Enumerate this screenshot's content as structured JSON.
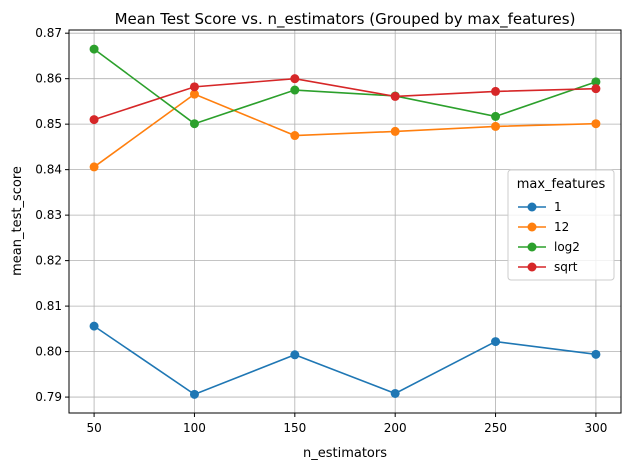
{
  "chart_data": {
    "type": "line",
    "title": "Mean Test Score vs. n_estimators (Grouped by max_features)",
    "xlabel": "n_estimators",
    "ylabel": "mean_test_score",
    "x": [
      50,
      100,
      150,
      200,
      250,
      300
    ],
    "xticks": [
      "50",
      "100",
      "150",
      "200",
      "250",
      "300"
    ],
    "yticks": [
      "0.79",
      "0.80",
      "0.81",
      "0.82",
      "0.83",
      "0.84",
      "0.85",
      "0.86",
      "0.87"
    ],
    "ylim": [
      0.7865,
      0.8707
    ],
    "xlim": [
      37.5,
      312.5
    ],
    "grid": true,
    "legend": {
      "title": "max_features",
      "placement": "center-right"
    },
    "series": [
      {
        "name": "1",
        "color": "#1f77b4",
        "values": [
          0.8056,
          0.7906,
          0.7993,
          0.7908,
          0.8022,
          0.7994
        ]
      },
      {
        "name": "12",
        "color": "#ff7f0e",
        "values": [
          0.8406,
          0.8566,
          0.8475,
          0.8484,
          0.8495,
          0.8501
        ]
      },
      {
        "name": "log2",
        "color": "#2ca02c",
        "values": [
          0.8665,
          0.8501,
          0.8575,
          0.8562,
          0.8517,
          0.8593
        ]
      },
      {
        "name": "sqrt",
        "color": "#d62728",
        "values": [
          0.851,
          0.8582,
          0.86,
          0.8561,
          0.8572,
          0.8578
        ]
      }
    ]
  }
}
